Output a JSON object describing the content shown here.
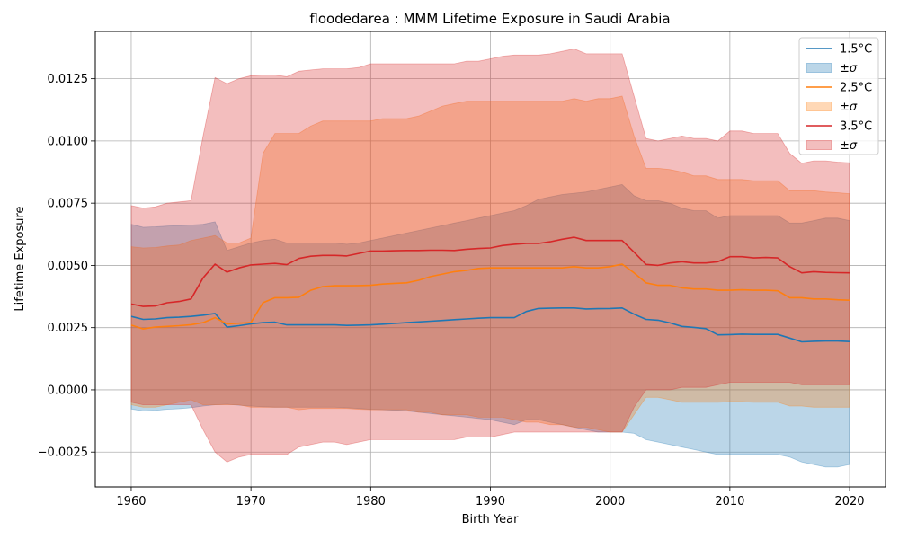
{
  "chart_data": {
    "type": "area",
    "title": "floodedarea : MMM Lifetime Exposure in Saudi Arabia",
    "xlabel": "Birth Year",
    "ylabel": "Lifetime Exposure",
    "xlim": [
      1957,
      2023
    ],
    "ylim": [
      -0.0039,
      0.0144
    ],
    "xticks": [
      1960,
      1970,
      1980,
      1990,
      2000,
      2010,
      2020
    ],
    "xtick_labels": [
      "1960",
      "1970",
      "1980",
      "1990",
      "2000",
      "2010",
      "2020"
    ],
    "yticks": [
      -0.0025,
      0.0,
      0.0025,
      0.005,
      0.0075,
      0.01,
      0.0125
    ],
    "ytick_labels": [
      "−0.0025",
      "0.0000",
      "0.0025",
      "0.0050",
      "0.0075",
      "0.0100",
      "0.0125"
    ],
    "grid": true,
    "legend_position": "top-right",
    "x": [
      1960,
      1961,
      1962,
      1963,
      1964,
      1965,
      1966,
      1967,
      1968,
      1969,
      1970,
      1971,
      1972,
      1973,
      1974,
      1975,
      1976,
      1977,
      1978,
      1979,
      1980,
      1981,
      1982,
      1983,
      1984,
      1985,
      1986,
      1987,
      1988,
      1989,
      1990,
      1991,
      1992,
      1993,
      1994,
      1995,
      1996,
      1997,
      1998,
      1999,
      2000,
      2001,
      2002,
      2003,
      2004,
      2005,
      2006,
      2007,
      2008,
      2009,
      2010,
      2011,
      2012,
      2013,
      2014,
      2015,
      2016,
      2017,
      2018,
      2019,
      2020
    ],
    "series": [
      {
        "name": "1.5°C",
        "band_label": "±σ",
        "color": "#1f77b4",
        "band_color": "#1f77b4",
        "band_opacity": 0.3,
        "mean": [
          0.00295,
          0.00283,
          0.00285,
          0.0029,
          0.00292,
          0.00295,
          0.003,
          0.00307,
          0.00252,
          0.00258,
          0.00265,
          0.0027,
          0.00272,
          0.00261,
          0.00261,
          0.00261,
          0.00261,
          0.00261,
          0.00259,
          0.0026,
          0.00261,
          0.00264,
          0.00267,
          0.0027,
          0.00273,
          0.00276,
          0.00279,
          0.00282,
          0.00285,
          0.00288,
          0.0029,
          0.0029,
          0.0029,
          0.00315,
          0.00327,
          0.00328,
          0.00329,
          0.00329,
          0.00325,
          0.00326,
          0.00327,
          0.00329,
          0.00304,
          0.00283,
          0.0028,
          0.00269,
          0.00255,
          0.00251,
          0.00246,
          0.00221,
          0.00222,
          0.00224,
          0.00223,
          0.00223,
          0.00223,
          0.00208,
          0.00193,
          0.00195,
          0.00196,
          0.00196,
          0.00194
        ],
        "upper": [
          0.00665,
          0.00653,
          0.00655,
          0.00658,
          0.0066,
          0.00662,
          0.00665,
          0.00675,
          0.0056,
          0.00575,
          0.0059,
          0.006,
          0.00605,
          0.0059,
          0.0059,
          0.0059,
          0.0059,
          0.0059,
          0.00585,
          0.0059,
          0.006,
          0.0061,
          0.0062,
          0.0063,
          0.0064,
          0.0065,
          0.0066,
          0.0067,
          0.0068,
          0.0069,
          0.007,
          0.0071,
          0.0072,
          0.0074,
          0.00765,
          0.00775,
          0.00785,
          0.0079,
          0.00795,
          0.00805,
          0.00815,
          0.00825,
          0.0078,
          0.0076,
          0.0076,
          0.0075,
          0.0073,
          0.0072,
          0.0072,
          0.0069,
          0.007,
          0.007,
          0.007,
          0.007,
          0.007,
          0.0067,
          0.0067,
          0.0068,
          0.0069,
          0.0069,
          0.0068
        ],
        "lower": [
          -0.00077,
          -0.00085,
          -0.00083,
          -0.00078,
          -0.00076,
          -0.00072,
          -0.00065,
          -0.0006,
          -0.00058,
          -0.00062,
          -0.00065,
          -0.00068,
          -0.0007,
          -0.0007,
          -0.0007,
          -0.0007,
          -0.0007,
          -0.0007,
          -0.00072,
          -0.00075,
          -0.00078,
          -0.0008,
          -0.00082,
          -0.00085,
          -0.0009,
          -0.00095,
          -0.001,
          -0.00105,
          -0.0011,
          -0.00115,
          -0.0012,
          -0.0013,
          -0.0014,
          -0.0012,
          -0.0012,
          -0.0013,
          -0.0014,
          -0.0015,
          -0.0016,
          -0.0017,
          -0.0017,
          -0.0017,
          -0.00175,
          -0.002,
          -0.0021,
          -0.0022,
          -0.0023,
          -0.0024,
          -0.0025,
          -0.0026,
          -0.0026,
          -0.0026,
          -0.0026,
          -0.0026,
          -0.0026,
          -0.0027,
          -0.0029,
          -0.003,
          -0.0031,
          -0.0031,
          -0.003
        ]
      },
      {
        "name": "2.5°C",
        "band_label": "±σ",
        "color": "#ff7f0e",
        "band_color": "#ff7f0e",
        "band_opacity": 0.3,
        "mean": [
          0.0026,
          0.00245,
          0.00252,
          0.00255,
          0.00258,
          0.00262,
          0.0027,
          0.0029,
          0.00265,
          0.00268,
          0.0027,
          0.0035,
          0.0037,
          0.0037,
          0.00372,
          0.004,
          0.00415,
          0.00418,
          0.00418,
          0.00419,
          0.0042,
          0.00425,
          0.00428,
          0.0043,
          0.0044,
          0.00455,
          0.00465,
          0.00475,
          0.0048,
          0.00488,
          0.0049,
          0.0049,
          0.0049,
          0.0049,
          0.0049,
          0.0049,
          0.0049,
          0.00495,
          0.0049,
          0.0049,
          0.00495,
          0.00505,
          0.0047,
          0.0043,
          0.0042,
          0.0042,
          0.0041,
          0.00405,
          0.00405,
          0.004,
          0.004,
          0.00402,
          0.004,
          0.004,
          0.00398,
          0.0037,
          0.0037,
          0.00365,
          0.00365,
          0.00362,
          0.0036
        ],
        "upper": [
          0.00575,
          0.0057,
          0.00572,
          0.00578,
          0.00582,
          0.006,
          0.0061,
          0.0062,
          0.0059,
          0.0059,
          0.0061,
          0.0095,
          0.0103,
          0.0103,
          0.0103,
          0.0106,
          0.0108,
          0.0108,
          0.0108,
          0.0108,
          0.0108,
          0.0109,
          0.0109,
          0.0109,
          0.011,
          0.0112,
          0.0114,
          0.0115,
          0.0116,
          0.0116,
          0.0116,
          0.0116,
          0.0116,
          0.0116,
          0.0116,
          0.0116,
          0.0116,
          0.0117,
          0.0116,
          0.0117,
          0.0117,
          0.0118,
          0.0102,
          0.0089,
          0.0089,
          0.00885,
          0.00875,
          0.0086,
          0.0086,
          0.00845,
          0.00845,
          0.00845,
          0.0084,
          0.0084,
          0.0084,
          0.008,
          0.008,
          0.008,
          0.00795,
          0.00792,
          0.00788
        ],
        "lower": [
          -0.0006,
          -0.0007,
          -0.0007,
          -0.0006,
          -0.0005,
          -0.0004,
          -0.0006,
          -0.0006,
          -0.0006,
          -0.0006,
          -0.0007,
          -0.0007,
          -0.0007,
          -0.0007,
          -0.0008,
          -0.00075,
          -0.00075,
          -0.00075,
          -0.00075,
          -0.00078,
          -0.0008,
          -0.0008,
          -0.0008,
          -0.0008,
          -0.0009,
          -0.0009,
          -0.001,
          -0.001,
          -0.001,
          -0.0011,
          -0.0011,
          -0.0011,
          -0.0012,
          -0.0013,
          -0.0013,
          -0.0014,
          -0.0014,
          -0.0015,
          -0.0015,
          -0.0016,
          -0.0017,
          -0.0017,
          -0.001,
          -0.0003,
          -0.0003,
          -0.0004,
          -0.0005,
          -0.0005,
          -0.0005,
          -0.0005,
          -0.00048,
          -0.00048,
          -0.0005,
          -0.0005,
          -0.0005,
          -0.00065,
          -0.00065,
          -0.0007,
          -0.0007,
          -0.0007,
          -0.0007
        ]
      },
      {
        "name": "3.5°C",
        "band_label": "±σ",
        "color": "#d62728",
        "band_color": "#d62728",
        "band_opacity": 0.3,
        "mean": [
          0.00345,
          0.00335,
          0.00337,
          0.0035,
          0.00355,
          0.00365,
          0.0045,
          0.00505,
          0.00473,
          0.0049,
          0.00502,
          0.00505,
          0.00508,
          0.00503,
          0.00528,
          0.00537,
          0.0054,
          0.0054,
          0.00538,
          0.00548,
          0.00558,
          0.00558,
          0.00559,
          0.0056,
          0.0056,
          0.00561,
          0.00561,
          0.0056,
          0.00565,
          0.00568,
          0.0057,
          0.0058,
          0.00585,
          0.00588,
          0.00588,
          0.00595,
          0.00605,
          0.00613,
          0.006,
          0.006,
          0.006,
          0.006,
          0.00553,
          0.00504,
          0.005,
          0.0051,
          0.00515,
          0.0051,
          0.0051,
          0.00515,
          0.00535,
          0.00535,
          0.0053,
          0.00532,
          0.0053,
          0.00495,
          0.0047,
          0.00475,
          0.00472,
          0.00471,
          0.0047
        ],
        "upper": [
          0.0074,
          0.0073,
          0.00735,
          0.0075,
          0.00755,
          0.0076,
          0.0102,
          0.01255,
          0.0123,
          0.0125,
          0.01262,
          0.01265,
          0.01265,
          0.01258,
          0.0128,
          0.01285,
          0.0129,
          0.0129,
          0.0129,
          0.01295,
          0.0131,
          0.0131,
          0.0131,
          0.0131,
          0.0131,
          0.0131,
          0.0131,
          0.0131,
          0.0132,
          0.0132,
          0.0133,
          0.0134,
          0.01345,
          0.01345,
          0.01345,
          0.0135,
          0.0136,
          0.0137,
          0.0135,
          0.0135,
          0.0135,
          0.0135,
          0.0118,
          0.0101,
          0.01,
          0.0101,
          0.0102,
          0.0101,
          0.0101,
          0.01,
          0.0104,
          0.0104,
          0.0103,
          0.0103,
          0.0103,
          0.0095,
          0.0091,
          0.0092,
          0.0092,
          0.00915,
          0.00912
        ],
        "lower": [
          -0.0005,
          -0.0006,
          -0.0006,
          -0.0006,
          -0.0006,
          -0.0006,
          -0.0016,
          -0.0025,
          -0.0029,
          -0.0027,
          -0.0026,
          -0.0026,
          -0.0026,
          -0.0026,
          -0.0023,
          -0.0022,
          -0.0021,
          -0.0021,
          -0.0022,
          -0.0021,
          -0.002,
          -0.002,
          -0.002,
          -0.002,
          -0.002,
          -0.002,
          -0.002,
          -0.002,
          -0.0019,
          -0.0019,
          -0.0019,
          -0.0018,
          -0.0017,
          -0.0017,
          -0.0017,
          -0.0017,
          -0.0017,
          -0.0017,
          -0.0017,
          -0.0017,
          -0.0017,
          -0.0017,
          -0.0007,
          0.0,
          0.0,
          0.0,
          0.0001,
          0.0001,
          0.0001,
          0.0002,
          0.0003,
          0.0003,
          0.0003,
          0.0003,
          0.0003,
          0.0003,
          0.0002,
          0.0002,
          0.0002,
          0.0002,
          0.0002
        ]
      }
    ]
  }
}
